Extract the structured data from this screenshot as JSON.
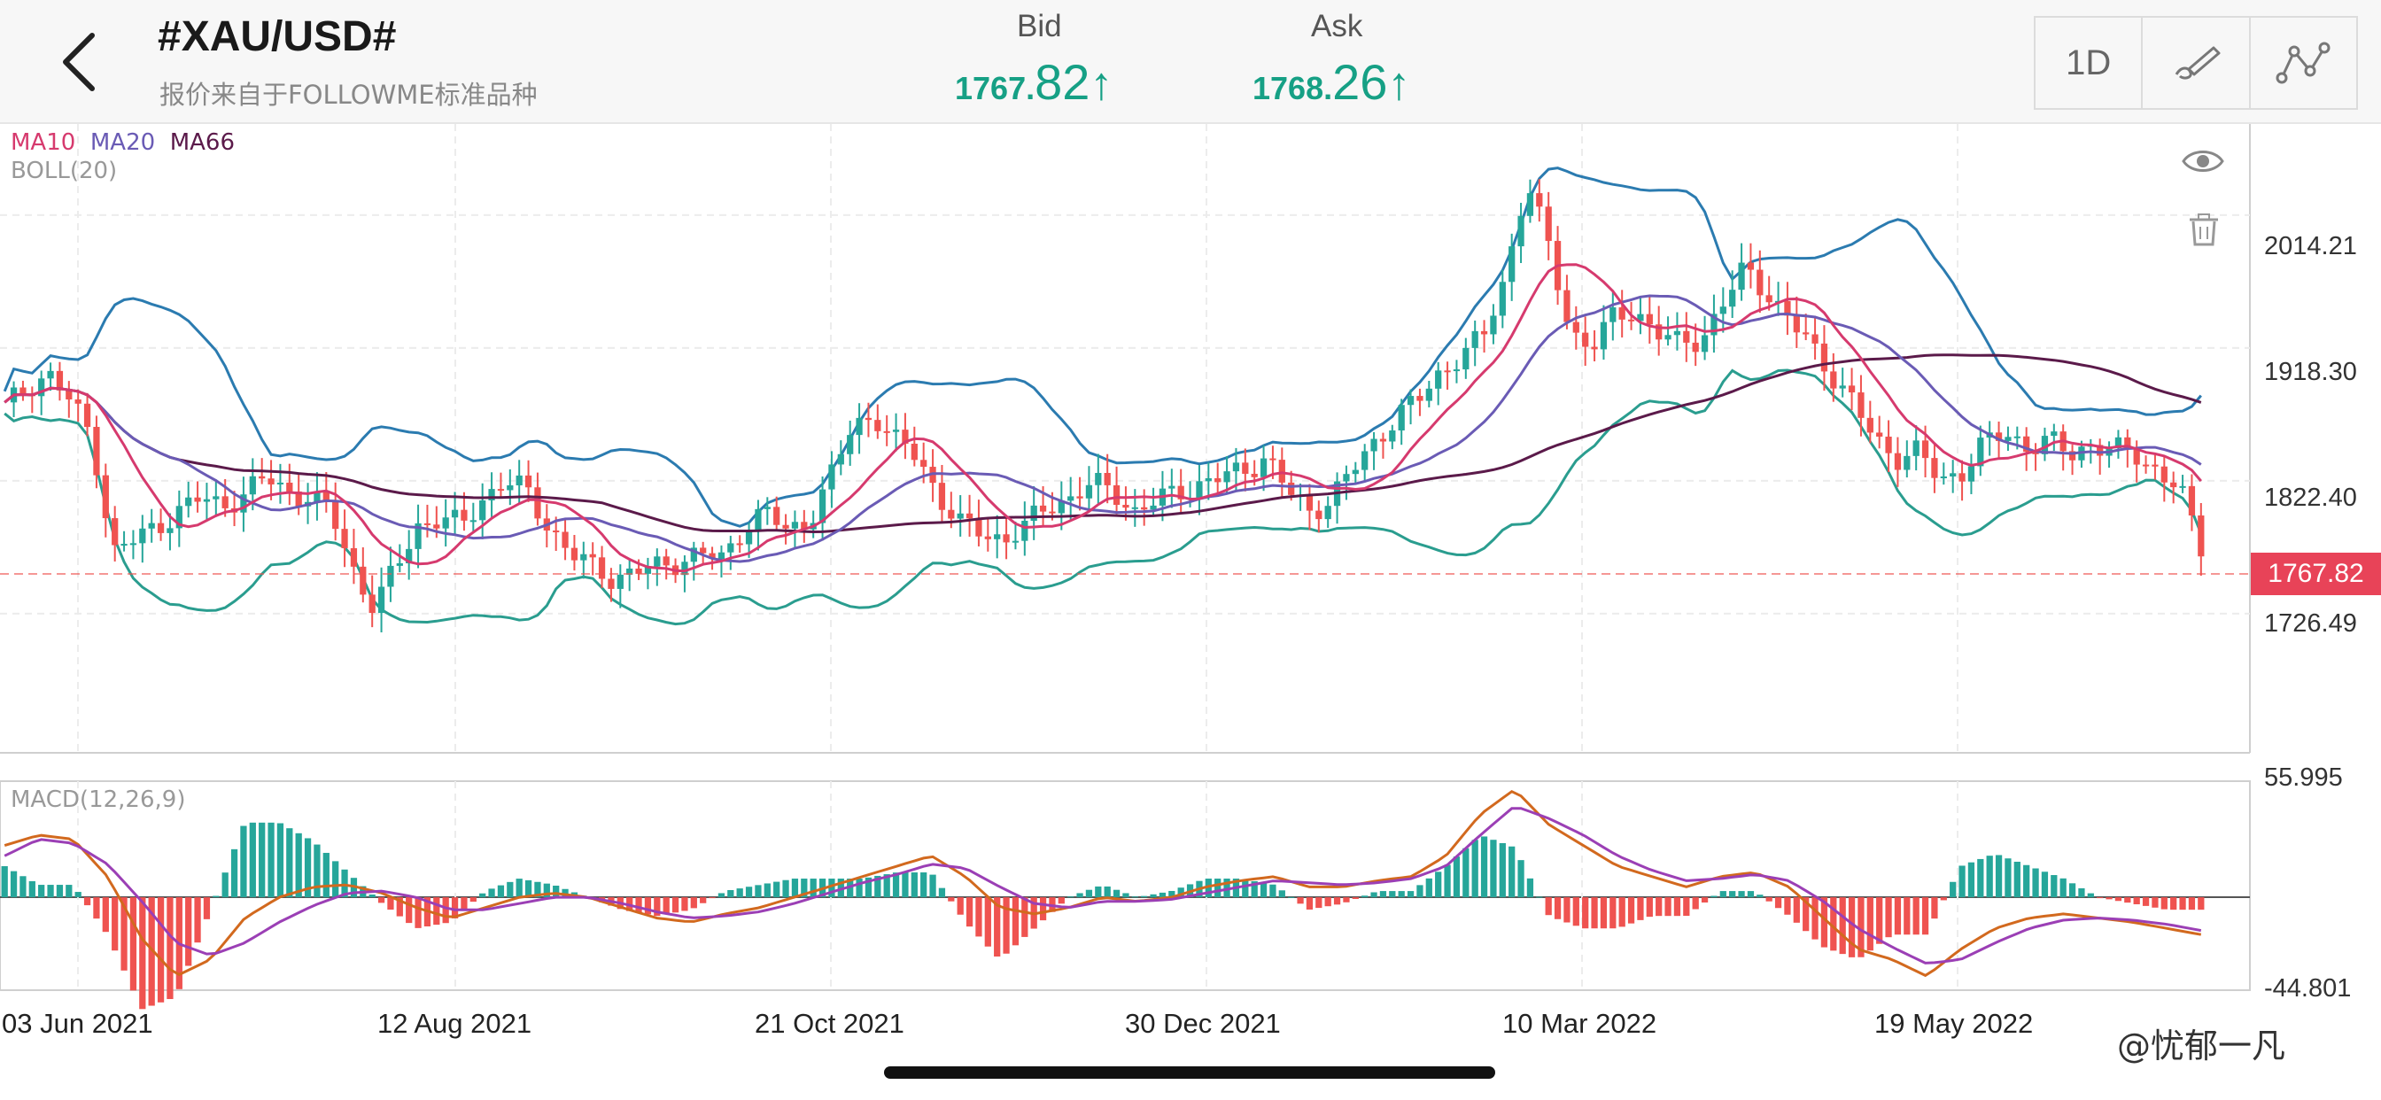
{
  "header": {
    "title": "#XAU/USD#",
    "subtitle": "报价来自于FOLLOWME标准品种",
    "bid": {
      "label": "Bid",
      "small": "1767.",
      "big": "82",
      "arrow": "↑",
      "color": "#16a085"
    },
    "ask": {
      "label": "Ask",
      "small": "1768.",
      "big": "26",
      "arrow": "↑",
      "color": "#16a085"
    },
    "tools": {
      "period": "1D"
    }
  },
  "icons": {
    "back": "chevron-left-icon",
    "draw": "drawing-pen-icon",
    "indicator": "indicator-line-icon",
    "eye": "eye-icon",
    "trash": "trash-icon"
  },
  "indicators": {
    "ma10": "MA10",
    "ma20": "MA20",
    "ma66": "MA66",
    "boll": "BOLL(20)",
    "macd": "MACD(12,26,9)"
  },
  "price_axis": [
    "2014.21",
    "1918.30",
    "1822.40",
    "1726.49"
  ],
  "current_price": "1767.82",
  "macd_axis": {
    "top": "55.995",
    "bottom": "-44.801"
  },
  "dates": [
    "03 Jun 2021",
    "12 Aug 2021",
    "21 Oct 2021",
    "30 Dec 2021",
    "10 Mar 2022",
    "19 May 2022"
  ],
  "watermark": "@忧郁一凡",
  "colors": {
    "up": "#26a69a",
    "down": "#ef5350",
    "ma10": "#d63a6e",
    "ma20": "#6a5bb5",
    "ma66": "#5b1a4a",
    "boll": "#2b7bb0",
    "boll_lower": "#2a9d8f",
    "price_tag": "#e84358"
  },
  "chart_data": {
    "type": "candlestick",
    "title": "#XAU/USD#",
    "interval": "1D",
    "x_range": [
      "2021-05-18",
      "2022-07-06"
    ],
    "x_ticks": [
      "03 Jun 2021",
      "12 Aug 2021",
      "21 Oct 2021",
      "30 Dec 2021",
      "10 Mar 2022",
      "19 May 2022"
    ],
    "y_ticks": [
      2014.21,
      1918.3,
      1822.4,
      1726.49
    ],
    "ylim": [
      1626,
      2080
    ],
    "last_price": 1767.82,
    "close_series": [
      1875,
      1890,
      1900,
      1880,
      1855,
      1770,
      1780,
      1790,
      1800,
      1810,
      1805,
      1812,
      1825,
      1815,
      1810,
      1800,
      1760,
      1730,
      1760,
      1790,
      1795,
      1790,
      1810,
      1822,
      1815,
      1790,
      1770,
      1760,
      1752,
      1757,
      1760,
      1765,
      1770,
      1765,
      1790,
      1800,
      1785,
      1795,
      1825,
      1862,
      1870,
      1850,
      1840,
      1810,
      1790,
      1785,
      1780,
      1790,
      1805,
      1810,
      1820,
      1815,
      1800,
      1808,
      1815,
      1820,
      1825,
      1830,
      1840,
      1815,
      1800,
      1810,
      1830,
      1850,
      1870,
      1880,
      1900,
      1915,
      1925,
      1970,
      2040,
      1990,
      1930,
      1920,
      1940,
      1945,
      1930,
      1920,
      1925,
      1950,
      1975,
      1960,
      1940,
      1920,
      1900,
      1880,
      1850,
      1840,
      1845,
      1820,
      1830,
      1850,
      1855,
      1848,
      1852,
      1840,
      1850,
      1845,
      1840,
      1830,
      1818,
      1770
    ],
    "macd": {
      "range": [
        -44.801,
        55.995
      ],
      "series": [
        {
          "name": "MACD",
          "values": [
            25,
            30,
            28,
            10,
            -20,
            -38,
            -30,
            -10,
            0,
            5,
            6,
            2,
            -5,
            -10,
            -5,
            0,
            2,
            0,
            -5,
            -10,
            -12,
            -8,
            -5,
            0,
            5,
            10,
            15,
            20,
            10,
            -5,
            -8,
            -5,
            0,
            -2,
            0,
            5,
            8,
            10,
            5,
            5,
            8,
            10,
            20,
            40,
            52,
            35,
            25,
            15,
            10,
            5,
            10,
            12,
            5,
            -10,
            -25,
            -30,
            -38,
            -25,
            -15,
            -10,
            -8,
            -10,
            -12,
            -15,
            -18
          ]
        },
        {
          "name": "Signal",
          "values": [
            20,
            28,
            26,
            16,
            -2,
            -22,
            -28,
            -22,
            -12,
            -4,
            2,
            3,
            0,
            -6,
            -6,
            -3,
            0,
            0,
            -3,
            -7,
            -10,
            -9,
            -7,
            -3,
            2,
            7,
            11,
            16,
            14,
            5,
            -3,
            -5,
            -2,
            -2,
            -1,
            2,
            5,
            8,
            7,
            6,
            7,
            9,
            15,
            30,
            44,
            38,
            30,
            20,
            13,
            8,
            9,
            11,
            8,
            -2,
            -15,
            -24,
            -32,
            -30,
            -22,
            -15,
            -11,
            -10,
            -11,
            -13,
            -16
          ]
        }
      ]
    }
  }
}
